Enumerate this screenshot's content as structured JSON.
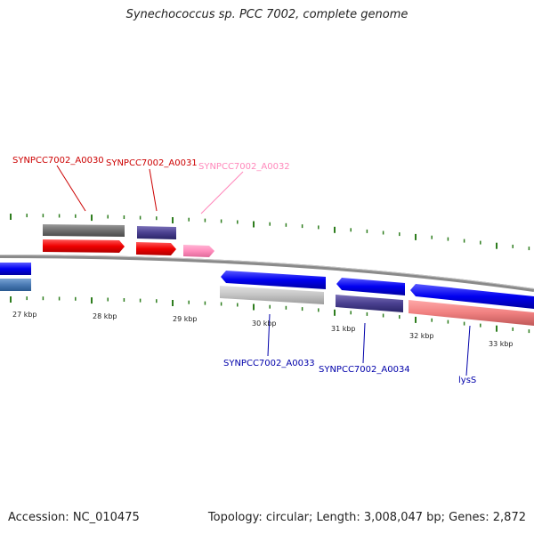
{
  "title": "Synechococcus sp. PCC 7002, complete genome",
  "footer": {
    "accession": "Accession: NC_010475",
    "info": "Topology: circular; Length: 3,008,047 bp; Genes: 2,872"
  },
  "ruler": {
    "labels": [
      "27 kbp",
      "28 kbp",
      "29 kbp",
      "30 kbp",
      "31 kbp",
      "32 kbp",
      "33 kbp"
    ]
  },
  "genes": {
    "a0030": "SYNPCC7002_A0030",
    "a0031": "SYNPCC7002_A0031",
    "a0032": "SYNPCC7002_A0032",
    "a0033": "SYNPCC7002_A0033",
    "a0034": "SYNPCC7002_A0034",
    "lyss": "lysS"
  },
  "colors": {
    "forward_cds": "#ff0000",
    "reverse_cds": "#0000ff",
    "label_forward": "#cc0000",
    "label_reverse": "#0000aa",
    "pseudo_pink": "#ff88bb",
    "tick_green": "#2e7d1e"
  }
}
